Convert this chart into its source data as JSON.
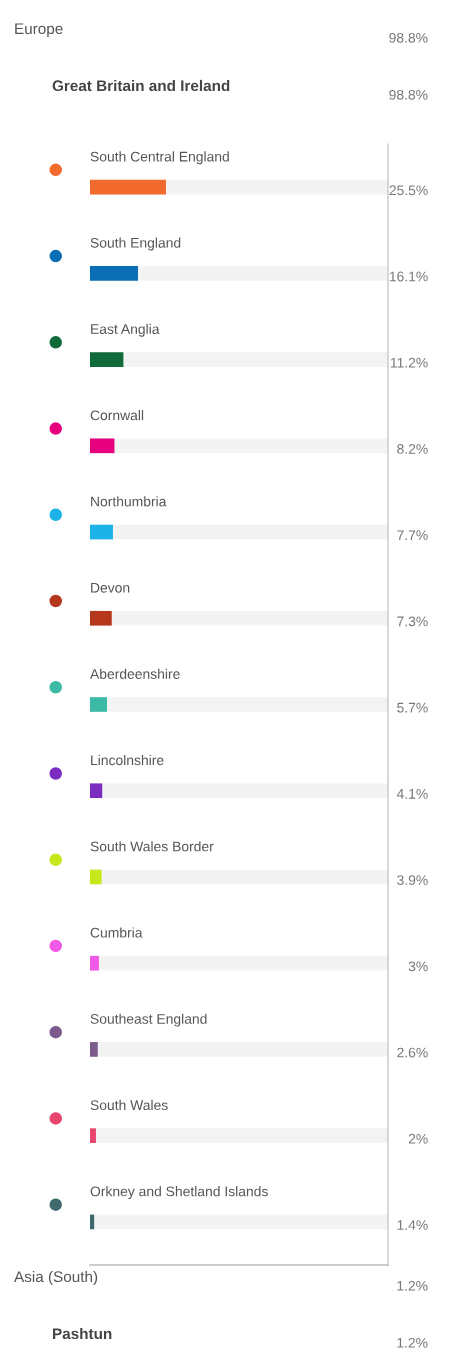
{
  "chart_data": [
    {
      "type": "other",
      "annotations": [
        "Europe",
        "98.8%",
        "Great Britain and Ireland",
        "98.8%"
      ]
    },
    {
      "type": "bar",
      "orientation": "horizontal",
      "xlim": [
        0,
        100
      ],
      "tick_labels": false,
      "categories": [
        "South Central England",
        "South England",
        "East Anglia",
        "Cornwall",
        "Northumbria",
        "Devon",
        "Aberdeenshire",
        "Lincolnshire",
        "South Wales Border",
        "Cumbria",
        "Southeast England",
        "South Wales",
        "Orkney and Shetland Islands"
      ],
      "values": [
        25.5,
        16.1,
        11.2,
        8.2,
        7.7,
        7.3,
        5.7,
        4.1,
        3.9,
        3,
        2.6,
        2,
        1.4
      ],
      "value_labels": [
        "25.5%",
        "16.1%",
        "11.2%",
        "8.2%",
        "7.7%",
        "7.3%",
        "5.7%",
        "4.1%",
        "3.9%",
        "3%",
        "2.6%",
        "2%",
        "1.4%"
      ],
      "colors": [
        "#f26b2c",
        "#0a6eb4",
        "#0f6b3a",
        "#e6007e",
        "#1bb3e8",
        "#b5381d",
        "#3dbaa6",
        "#7b2dbf",
        "#c6e81a",
        "#f05ae6",
        "#7b5a8c",
        "#e8456e",
        "#3e6a6e"
      ]
    },
    {
      "type": "other",
      "annotations": [
        "Asia (South)",
        "1.2%",
        "Pashtun",
        "1.2%"
      ]
    }
  ]
}
